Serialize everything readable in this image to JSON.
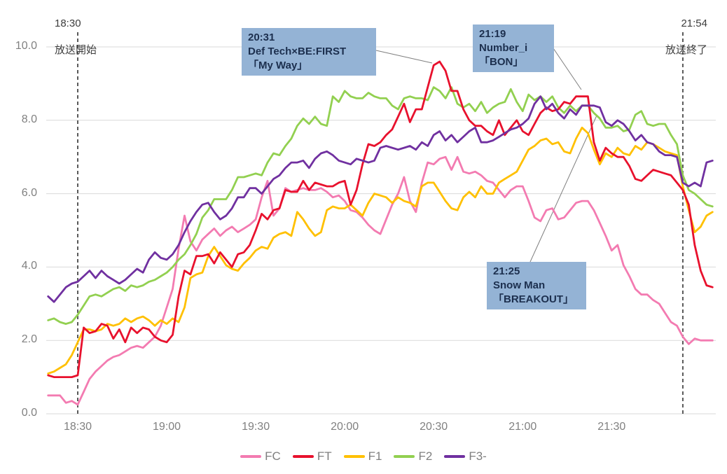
{
  "broadcast": {
    "start": {
      "time": "18:30",
      "label": "放送開始"
    },
    "end": {
      "time": "21:54",
      "label": "放送終了"
    }
  },
  "annotations": [
    {
      "time": "20:31",
      "artist": "Def Tech×BE:FIRST",
      "song": "「My Way」"
    },
    {
      "time": "21:19",
      "artist": "Number_i",
      "song": "「BON」"
    },
    {
      "time": "21:25",
      "artist": "Snow Man",
      "song": "「BREAKOUT」"
    }
  ],
  "legend": [
    "FC",
    "FT",
    "F1",
    "F2",
    "F3-"
  ],
  "colors": {
    "FC": "#f37bb1",
    "FT": "#e8112d",
    "F1": "#ffc000",
    "F2": "#92d050",
    "F3-": "#7030a0",
    "grid": "#d9d9d9",
    "axis_text": "#808080",
    "dashed_line": "#595959",
    "annotation_box": "#94b3d5",
    "annotation_text": "#1c2f4e",
    "connector": "#7f7f7f"
  },
  "chart_data": {
    "type": "line",
    "x_start": "18:20",
    "x_step_min": 2,
    "x_end": "22:04",
    "x_ticks": [
      "18:30",
      "19:00",
      "19:30",
      "20:00",
      "20:30",
      "21:00",
      "21:30"
    ],
    "y_ticks": [
      "0.0",
      "2.0",
      "4.0",
      "6.0",
      "8.0",
      "10.0"
    ],
    "ylim": [
      0,
      10
    ],
    "grid": "horizontal",
    "legend_position": "bottom",
    "vlines": [
      "18:30",
      "21:54"
    ],
    "series": [
      {
        "name": "FC",
        "values": [
          0.5,
          0.5,
          0.5,
          0.3,
          0.35,
          0.25,
          0.6,
          0.95,
          1.15,
          1.3,
          1.45,
          1.55,
          1.6,
          1.7,
          1.8,
          1.85,
          1.8,
          1.95,
          2.1,
          2.4,
          2.9,
          3.4,
          4.5,
          5.4,
          4.7,
          4.45,
          4.75,
          4.9,
          5.05,
          4.85,
          5.0,
          5.1,
          4.95,
          5.05,
          5.15,
          5.3,
          5.9,
          6.35,
          5.4,
          5.6,
          6.15,
          6.05,
          6.1,
          6.15,
          6.1,
          6.1,
          6.15,
          6.05,
          5.9,
          5.95,
          5.8,
          5.55,
          5.5,
          5.35,
          5.15,
          5.0,
          4.9,
          5.3,
          5.7,
          6.0,
          6.45,
          5.8,
          5.5,
          6.3,
          6.85,
          6.8,
          6.95,
          7.0,
          6.65,
          7.0,
          6.6,
          6.55,
          6.6,
          6.5,
          6.35,
          6.3,
          6.1,
          5.9,
          6.1,
          6.2,
          6.2,
          5.8,
          5.35,
          5.25,
          5.55,
          5.6,
          5.3,
          5.35,
          5.55,
          5.75,
          5.8,
          5.8,
          5.55,
          5.2,
          4.85,
          4.45,
          4.6,
          4.05,
          3.75,
          3.4,
          3.25,
          3.25,
          3.1,
          3.0,
          2.75,
          2.5,
          2.4,
          2.1,
          1.9,
          2.05,
          2.0,
          2.0,
          2.0
        ]
      },
      {
        "name": "FT",
        "values": [
          1.05,
          1.0,
          1.0,
          1.0,
          1.0,
          1.05,
          2.35,
          2.2,
          2.25,
          2.45,
          2.4,
          2.05,
          2.3,
          1.95,
          2.35,
          2.2,
          2.35,
          2.3,
          2.1,
          2.0,
          1.95,
          2.15,
          3.2,
          3.9,
          3.8,
          4.3,
          4.3,
          4.35,
          4.1,
          4.4,
          4.2,
          4.0,
          4.35,
          4.4,
          4.6,
          5.0,
          5.45,
          5.3,
          5.55,
          5.6,
          6.1,
          6.05,
          6.05,
          6.35,
          6.1,
          6.3,
          6.25,
          6.2,
          6.2,
          6.3,
          6.35,
          5.7,
          6.1,
          6.8,
          7.35,
          7.3,
          7.4,
          7.6,
          7.75,
          8.1,
          8.45,
          7.95,
          8.3,
          8.3,
          8.9,
          9.5,
          9.6,
          9.35,
          8.8,
          8.8,
          8.3,
          8.0,
          7.85,
          7.85,
          7.7,
          7.6,
          8.0,
          7.6,
          7.8,
          8.0,
          7.7,
          7.6,
          7.9,
          8.2,
          8.35,
          8.25,
          8.3,
          8.5,
          8.45,
          8.65,
          8.65,
          8.65,
          7.4,
          6.9,
          7.25,
          7.1,
          7.0,
          7.0,
          6.75,
          6.4,
          6.35,
          6.5,
          6.65,
          6.6,
          6.55,
          6.5,
          6.3,
          6.1,
          5.7,
          4.6,
          3.9,
          3.5,
          3.45
        ]
      },
      {
        "name": "F1",
        "values": [
          1.1,
          1.15,
          1.25,
          1.35,
          1.6,
          1.95,
          2.3,
          2.3,
          2.25,
          2.3,
          2.45,
          2.4,
          2.45,
          2.6,
          2.5,
          2.6,
          2.65,
          2.55,
          2.4,
          2.55,
          2.45,
          2.6,
          2.5,
          2.9,
          3.7,
          3.8,
          3.85,
          4.3,
          4.55,
          4.3,
          4.05,
          3.95,
          3.9,
          4.1,
          4.25,
          4.45,
          4.55,
          4.5,
          4.8,
          4.9,
          4.95,
          4.85,
          5.5,
          5.3,
          5.05,
          4.85,
          4.95,
          5.55,
          5.65,
          5.6,
          5.6,
          5.7,
          5.55,
          5.4,
          5.75,
          6.0,
          5.95,
          5.9,
          5.75,
          5.9,
          5.8,
          5.75,
          5.65,
          6.2,
          6.3,
          6.3,
          6.05,
          5.8,
          5.6,
          5.55,
          5.9,
          6.05,
          5.9,
          6.2,
          6.0,
          6.0,
          6.3,
          6.4,
          6.5,
          6.6,
          6.9,
          7.2,
          7.3,
          7.45,
          7.5,
          7.35,
          7.4,
          7.15,
          7.1,
          7.5,
          7.8,
          7.65,
          7.2,
          6.8,
          7.1,
          7.0,
          7.25,
          7.1,
          7.05,
          7.3,
          7.2,
          7.4,
          7.35,
          7.25,
          7.15,
          7.1,
          7.05,
          6.2,
          5.55,
          4.95,
          5.1,
          5.4,
          5.5
        ]
      },
      {
        "name": "F2",
        "values": [
          2.55,
          2.6,
          2.5,
          2.45,
          2.5,
          2.7,
          2.95,
          3.2,
          3.25,
          3.2,
          3.3,
          3.4,
          3.45,
          3.35,
          3.5,
          3.45,
          3.5,
          3.6,
          3.65,
          3.75,
          3.85,
          4.0,
          4.2,
          4.35,
          4.6,
          4.9,
          5.35,
          5.55,
          5.85,
          5.85,
          5.85,
          6.1,
          6.45,
          6.45,
          6.5,
          6.55,
          6.5,
          6.85,
          7.1,
          7.05,
          7.3,
          7.5,
          7.85,
          8.05,
          7.9,
          8.1,
          7.9,
          7.85,
          8.65,
          8.5,
          8.8,
          8.65,
          8.6,
          8.6,
          8.75,
          8.65,
          8.6,
          8.6,
          8.4,
          8.3,
          8.6,
          8.65,
          8.6,
          8.6,
          8.55,
          8.9,
          8.8,
          8.6,
          8.9,
          8.45,
          8.35,
          8.45,
          8.25,
          8.5,
          8.2,
          8.35,
          8.45,
          8.5,
          8.85,
          8.5,
          8.25,
          8.7,
          8.55,
          8.65,
          8.5,
          8.65,
          8.35,
          8.2,
          8.4,
          8.25,
          8.4,
          8.4,
          8.2,
          8.05,
          7.8,
          7.8,
          7.85,
          7.7,
          7.75,
          8.15,
          8.25,
          7.9,
          7.85,
          7.9,
          7.9,
          7.6,
          7.35,
          6.5,
          6.1,
          6.0,
          5.85,
          5.7,
          5.65
        ]
      },
      {
        "name": "F3-",
        "values": [
          3.2,
          3.05,
          3.25,
          3.45,
          3.55,
          3.6,
          3.75,
          3.9,
          3.7,
          3.9,
          3.75,
          3.65,
          3.55,
          3.65,
          3.8,
          3.95,
          3.85,
          4.2,
          4.4,
          4.25,
          4.2,
          4.35,
          4.6,
          4.95,
          5.25,
          5.5,
          5.7,
          5.75,
          5.5,
          5.3,
          5.4,
          5.6,
          5.9,
          5.9,
          6.15,
          6.15,
          6.0,
          6.2,
          6.4,
          6.5,
          6.7,
          6.85,
          6.85,
          6.9,
          6.7,
          6.95,
          7.1,
          7.15,
          7.05,
          6.9,
          6.85,
          6.8,
          6.95,
          6.9,
          6.85,
          6.9,
          7.25,
          7.3,
          7.25,
          7.2,
          7.25,
          7.3,
          7.2,
          7.4,
          7.3,
          7.6,
          7.7,
          7.45,
          7.6,
          7.4,
          7.55,
          7.7,
          7.8,
          7.4,
          7.4,
          7.45,
          7.55,
          7.65,
          7.75,
          7.8,
          7.9,
          8.05,
          8.45,
          8.65,
          8.3,
          8.45,
          8.2,
          8.05,
          8.3,
          8.15,
          8.4,
          8.4,
          8.4,
          8.35,
          7.95,
          7.85,
          8.0,
          7.9,
          7.7,
          7.45,
          7.6,
          7.4,
          7.35,
          7.15,
          7.05,
          7.05,
          7.0,
          6.3,
          6.2,
          6.3,
          6.2,
          6.85,
          6.9
        ]
      }
    ]
  }
}
